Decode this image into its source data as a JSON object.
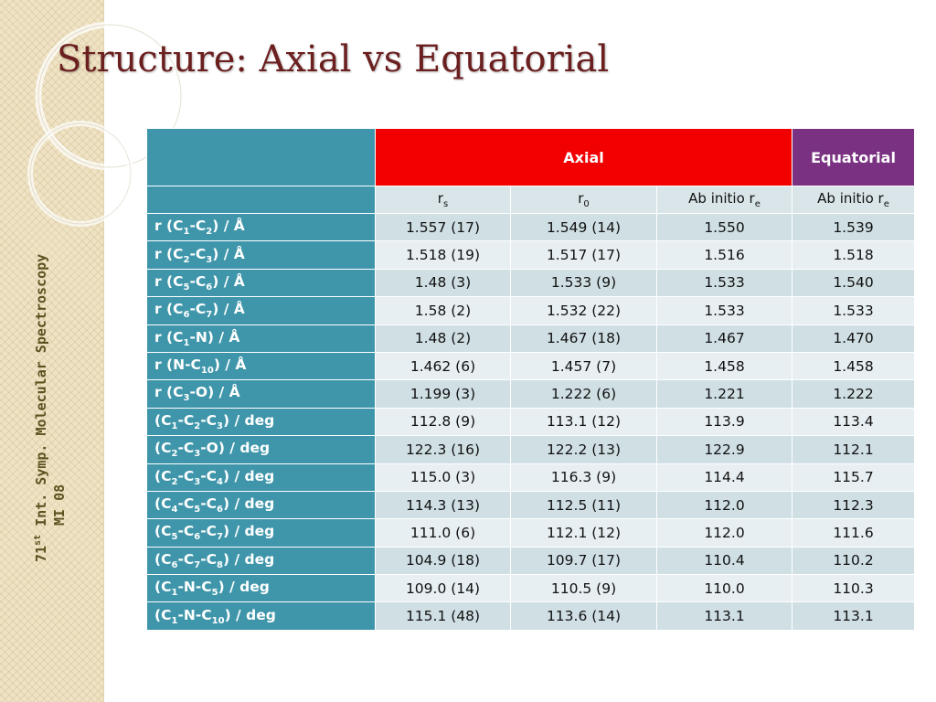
{
  "slide": {
    "title": "Structure: Axial vs Equatorial",
    "footer_line1_pre": "71",
    "footer_line1_sup": "st",
    "footer_line1_post": " Int. Symp. Molecular Spectroscopy",
    "footer_line2": "MI 08"
  },
  "table": {
    "group_headers": {
      "axial": "Axial",
      "equatorial": "Equatorial"
    },
    "columns": [
      {
        "base": "r",
        "sub": "s"
      },
      {
        "base": "r",
        "sub": "0"
      },
      {
        "base": "Ab initio r",
        "sub": "e"
      },
      {
        "base": "Ab initio r",
        "sub": "e"
      }
    ],
    "rows": [
      {
        "label": [
          [
            "r (C",
            ""
          ],
          [
            "1",
            "s"
          ],
          [
            "-C",
            ""
          ],
          [
            "2",
            "s"
          ],
          [
            ") / Å",
            ""
          ]
        ],
        "values": [
          "1.557 (17)",
          "1.549 (14)",
          "1.550",
          "1.539"
        ]
      },
      {
        "label": [
          [
            "r (C",
            ""
          ],
          [
            "2",
            "s"
          ],
          [
            "-C",
            ""
          ],
          [
            "3",
            "s"
          ],
          [
            ") / Å",
            ""
          ]
        ],
        "values": [
          "1.518 (19)",
          "1.517 (17)",
          "1.516",
          "1.518"
        ]
      },
      {
        "label": [
          [
            "r (C",
            ""
          ],
          [
            "5",
            "s"
          ],
          [
            "-C",
            ""
          ],
          [
            "6",
            "s"
          ],
          [
            ") / Å",
            ""
          ]
        ],
        "values": [
          "1.48 (3)",
          "1.533 (9)",
          "1.533",
          "1.540"
        ]
      },
      {
        "label": [
          [
            "r (C",
            ""
          ],
          [
            "6",
            "s"
          ],
          [
            "-C",
            ""
          ],
          [
            "7",
            "s"
          ],
          [
            ") /  Å",
            ""
          ]
        ],
        "values": [
          "1.58 (2)",
          "1.532 (22)",
          "1.533",
          "1.533"
        ]
      },
      {
        "label": [
          [
            "r (C",
            ""
          ],
          [
            "1",
            "s"
          ],
          [
            "-N) / Å",
            ""
          ]
        ],
        "values": [
          "1.48 (2)",
          "1.467 (18)",
          "1.467",
          "1.470"
        ]
      },
      {
        "label": [
          [
            "r (N-C",
            ""
          ],
          [
            "10",
            "s"
          ],
          [
            ") / Å",
            ""
          ]
        ],
        "values": [
          "1.462 (6)",
          "1.457 (7)",
          "1.458",
          "1.458"
        ]
      },
      {
        "label": [
          [
            "r (C",
            ""
          ],
          [
            "3",
            "s"
          ],
          [
            "-O) / Å",
            ""
          ]
        ],
        "values": [
          "1.199 (3)",
          "1.222 (6)",
          "1.221",
          "1.222"
        ]
      },
      {
        "label": [
          [
            "(C",
            ""
          ],
          [
            "1",
            "s"
          ],
          [
            "-C",
            ""
          ],
          [
            "2",
            "s"
          ],
          [
            "-C",
            ""
          ],
          [
            "3",
            "s"
          ],
          [
            ")  / deg",
            ""
          ]
        ],
        "values": [
          "112.8 (9)",
          "113.1 (12)",
          "113.9",
          "113.4"
        ]
      },
      {
        "label": [
          [
            "(C",
            ""
          ],
          [
            "2",
            "s"
          ],
          [
            "-C",
            ""
          ],
          [
            "3",
            "s"
          ],
          [
            "-O)  / deg",
            ""
          ]
        ],
        "values": [
          "122.3 (16)",
          "122.2 (13)",
          "122.9",
          "112.1"
        ]
      },
      {
        "label": [
          [
            "(C",
            ""
          ],
          [
            "2",
            "s"
          ],
          [
            "-C",
            ""
          ],
          [
            "3",
            "s"
          ],
          [
            "-C",
            ""
          ],
          [
            "4",
            "s"
          ],
          [
            ") / deg",
            ""
          ]
        ],
        "values": [
          "115.0 (3)",
          "116.3 (9)",
          "114.4",
          "115.7"
        ]
      },
      {
        "label": [
          [
            "(C",
            ""
          ],
          [
            "4",
            "s"
          ],
          [
            "-C",
            ""
          ],
          [
            "5",
            "s"
          ],
          [
            "-C",
            ""
          ],
          [
            "6",
            "s"
          ],
          [
            ")  / deg",
            ""
          ]
        ],
        "values": [
          "114.3 (13)",
          "112.5 (11)",
          "112.0",
          "112.3"
        ]
      },
      {
        "label": [
          [
            "(C",
            ""
          ],
          [
            "5",
            "s"
          ],
          [
            "-C",
            ""
          ],
          [
            "6",
            "s"
          ],
          [
            "-C",
            ""
          ],
          [
            "7",
            "s"
          ],
          [
            ")  / deg",
            ""
          ]
        ],
        "values": [
          "111.0 (6)",
          "112.1 (12)",
          "112.0",
          "111.6"
        ]
      },
      {
        "label": [
          [
            "(C",
            ""
          ],
          [
            "6",
            "s"
          ],
          [
            "-C",
            ""
          ],
          [
            "7",
            "s"
          ],
          [
            "-C",
            ""
          ],
          [
            "8",
            "s"
          ],
          [
            ")  / deg",
            ""
          ]
        ],
        "values": [
          "104.9 (18)",
          "109.7 (17)",
          "110.4",
          "110.2"
        ]
      },
      {
        "label": [
          [
            "(C",
            ""
          ],
          [
            "1",
            "s"
          ],
          [
            "-N-C",
            ""
          ],
          [
            "5",
            "s"
          ],
          [
            ")  / deg",
            ""
          ]
        ],
        "values": [
          "109.0 (14)",
          "110.5 (9)",
          "110.0",
          "110.3"
        ]
      },
      {
        "label": [
          [
            "(C",
            ""
          ],
          [
            "1",
            "s"
          ],
          [
            "-N-C",
            ""
          ],
          [
            "10",
            "s"
          ],
          [
            ")  / deg",
            ""
          ]
        ],
        "values": [
          "115.1 (48)",
          "113.6 (14)",
          "113.1",
          "113.1"
        ]
      }
    ]
  },
  "colors": {
    "axial_header": "#f20000",
    "equatorial_header": "#7a3182",
    "row_label_bg": "#3f96aa",
    "title": "#6b1f1f",
    "sidebar_bg": "#efe3c4"
  }
}
